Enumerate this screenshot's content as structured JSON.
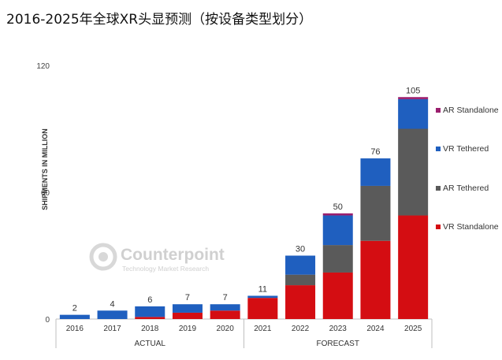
{
  "page": {
    "title": "2016-2025年全球XR头显预测（按设备类型划分）"
  },
  "watermark": {
    "brand": "Counterpoint",
    "tagline": "Technology Market Research"
  },
  "chart_data": {
    "type": "bar",
    "stacked": true,
    "ylabel": "SHIPMENTS IN MILLION",
    "ylim": [
      0,
      120
    ],
    "yticks": [
      0,
      60,
      120
    ],
    "categories": [
      "2016",
      "2017",
      "2018",
      "2019",
      "2020",
      "2021",
      "2022",
      "2023",
      "2024",
      "2025"
    ],
    "groups": [
      {
        "label": "ACTUAL",
        "from": 0,
        "to": 4
      },
      {
        "label": "FORECAST",
        "from": 5,
        "to": 9
      }
    ],
    "totals": [
      "2",
      "4",
      "6",
      "7",
      "7",
      "11",
      "30",
      "50",
      "76",
      "105"
    ],
    "series": [
      {
        "name": "VR Standalone",
        "color": "#d40d12",
        "values": [
          0,
          0,
          1,
          3,
          4,
          10,
          16,
          22,
          37,
          49
        ]
      },
      {
        "name": "AR Tethered",
        "color": "#5a5a5a",
        "values": [
          0,
          0,
          0,
          0,
          0,
          0,
          5,
          13,
          26,
          41
        ]
      },
      {
        "name": "VR Tethered",
        "color": "#1f5fbf",
        "values": [
          2,
          4,
          5,
          4,
          3,
          1,
          9,
          14,
          13,
          14
        ]
      },
      {
        "name": "AR Standalone",
        "color": "#9b1f6e",
        "values": [
          0,
          0,
          0,
          0,
          0,
          0,
          0,
          1,
          0,
          1
        ]
      }
    ],
    "legend_order": [
      "AR Standalone",
      "VR Tethered",
      "AR Tethered",
      "VR Standalone"
    ],
    "legend_position": "right",
    "grid": false
  }
}
